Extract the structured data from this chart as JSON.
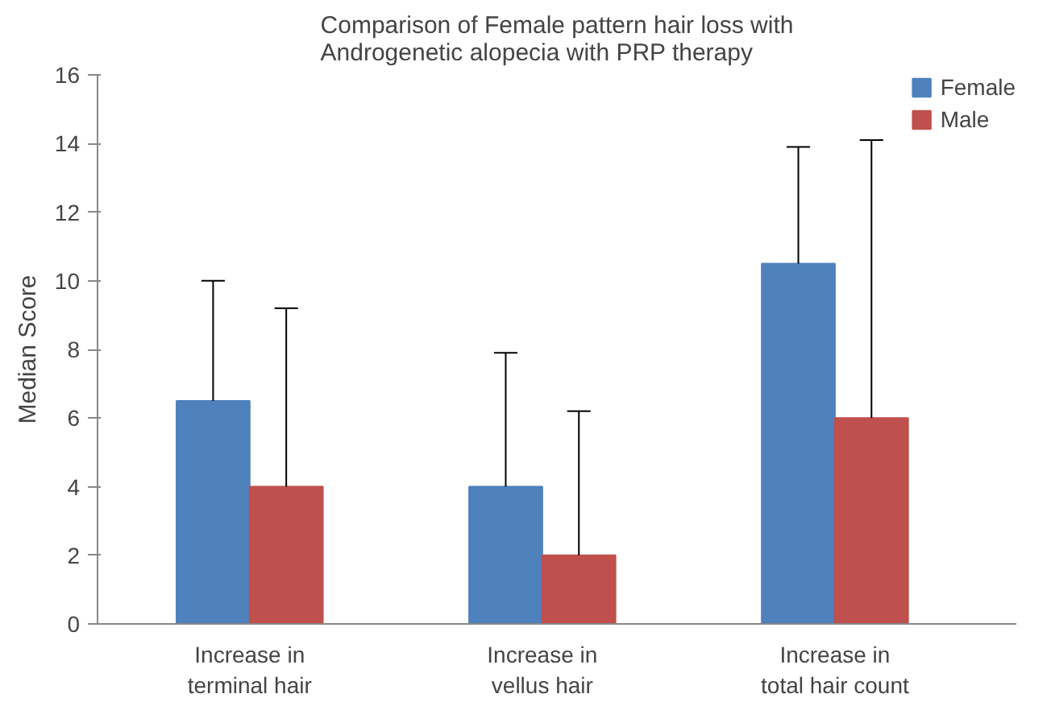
{
  "chart_data": {
    "type": "bar",
    "title": "Comparison of Female pattern hair loss with\nAndrogenetic alopecia with PRP therapy",
    "ylabel": "Median Score",
    "categories": [
      "Increase in\nterminal hair",
      "Increase in\nvellus hair",
      "Increase in\ntotal hair count"
    ],
    "series": [
      {
        "name": "Female",
        "color": "#4f81bd",
        "values": [
          6.5,
          4,
          10.5
        ],
        "errors": [
          [
            6.5,
            10
          ],
          [
            4,
            7.9
          ],
          [
            10.5,
            13.9
          ]
        ]
      },
      {
        "name": "Male",
        "color": "#c0504d",
        "values": [
          4,
          2,
          6
        ],
        "errors": [
          [
            4,
            9.2
          ],
          [
            2,
            6.2
          ],
          [
            6,
            14.1
          ]
        ]
      }
    ],
    "ylim": [
      0,
      16
    ],
    "yticks": [
      0,
      2,
      4,
      6,
      8,
      10,
      12,
      14,
      16
    ],
    "grid": false,
    "legend": "top right"
  }
}
